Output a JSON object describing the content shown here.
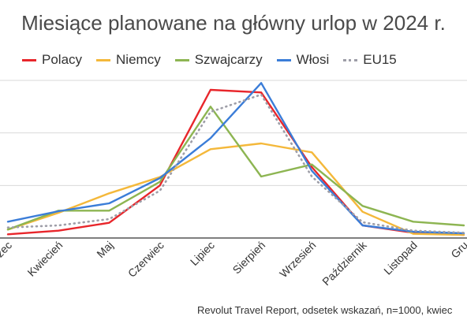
{
  "chart_data": {
    "type": "line",
    "title": "Miesiące planowane na główny urlop w 2024 r.",
    "xlabel": "",
    "ylabel": "",
    "categories": [
      "Marzec",
      "Kwiecień",
      "Maj",
      "Czerwiec",
      "Lipiec",
      "Sierpień",
      "Wrzesień",
      "Październik",
      "Listopad",
      "Grudzień"
    ],
    "visible_tick_labels": [
      "rzec",
      "Kwiecień",
      "Maj",
      "Czerwiec",
      "Lipiec",
      "Sierpień",
      "Wrzesień",
      "Październik",
      "Listopad",
      "Gru"
    ],
    "ylim": [
      0,
      30
    ],
    "yticks": [
      0,
      10,
      20,
      30
    ],
    "grid": true,
    "legend_position": "top",
    "series": [
      {
        "name": "Polacy",
        "color": "#e8262b",
        "style": "solid",
        "values": [
          0.7,
          1.4,
          2.9,
          10.0,
          28.2,
          27.7,
          13.5,
          2.4,
          1.0,
          0.6
        ]
      },
      {
        "name": "Niemcy",
        "color": "#f4b83a",
        "style": "solid",
        "values": [
          1.6,
          4.8,
          8.5,
          11.6,
          16.9,
          18.0,
          16.3,
          5.0,
          0.8,
          0.6
        ]
      },
      {
        "name": "Szwajcarzy",
        "color": "#8db552",
        "style": "solid",
        "values": [
          1.6,
          5.2,
          5.2,
          10.7,
          25.0,
          11.7,
          14.0,
          6.1,
          3.1,
          2.4
        ]
      },
      {
        "name": "Włosi",
        "color": "#3b7dd8",
        "style": "solid",
        "values": [
          3.1,
          5.1,
          6.6,
          11.4,
          19.0,
          29.5,
          12.8,
          2.4,
          1.2,
          0.9
        ]
      },
      {
        "name": "EU15",
        "color": "#9e9ea8",
        "style": "dotted",
        "values": [
          2.0,
          2.4,
          3.6,
          9.0,
          24.0,
          27.3,
          11.7,
          3.0,
          1.4,
          1.0
        ]
      }
    ],
    "source": "Revolut Travel Report, odsetek wskazań, n=1000, kwiec"
  }
}
